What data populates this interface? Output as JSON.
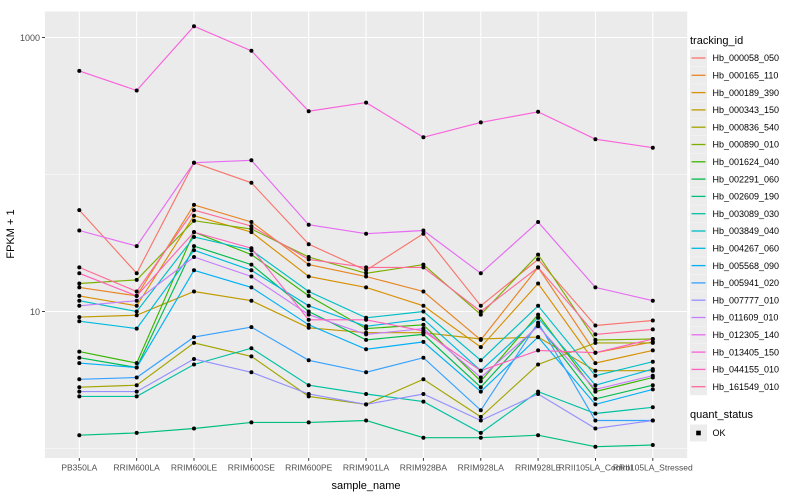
{
  "chart_data": {
    "type": "line",
    "title": "",
    "xlabel": "sample_name",
    "ylabel": "FPKM + 1",
    "y_scale": "log10",
    "ylim": [
      0.85,
      1550
    ],
    "grid": true,
    "legend_position": "right",
    "panel_background": "#EBEBEB",
    "gridline_color": "#FFFFFF",
    "point_color": "#000000",
    "y_ticks": [
      {
        "label": "1000",
        "value": 1000
      },
      {
        "label": "10",
        "value": 10
      }
    ],
    "y_minor_gridlines": [
      100,
      1
    ],
    "categories": [
      "PB350LA",
      "RRIM600LA",
      "RRIM600LE",
      "RRIM600SE",
      "RRIM600PE",
      "RRIM901LA",
      "RRIM928BA",
      "RRIM928LA",
      "RRIM928LE",
      "RRII105LA_Control",
      "RRII105LA_Stressed"
    ],
    "series": [
      {
        "name": "Hb_000058_050",
        "color": "#F8766D",
        "values": [
          55,
          19,
          122,
          87,
          31,
          20,
          37,
          11,
          24,
          7.9,
          8.6
        ]
      },
      {
        "name": "Hb_000165_110",
        "color": "#E88526",
        "values": [
          15,
          13,
          60,
          45,
          22,
          18,
          14,
          6.2,
          21,
          5,
          6
        ]
      },
      {
        "name": "Hb_000189_390",
        "color": "#D89000",
        "values": [
          13,
          11,
          50,
          38,
          18,
          15,
          11,
          5.5,
          16,
          4.2,
          5.2
        ]
      },
      {
        "name": "Hb_000343_150",
        "color": "#C09B00",
        "values": [
          9.1,
          9.4,
          14,
          12,
          7.6,
          7,
          7,
          6.3,
          6.5,
          3.7,
          3.7
        ]
      },
      {
        "name": "Hb_000836_540",
        "color": "#A3A500",
        "values": [
          2.8,
          2.9,
          5.9,
          4.7,
          2.4,
          2.1,
          3.2,
          1.7,
          4.1,
          5.9,
          5.9
        ]
      },
      {
        "name": "Hb_000890_010",
        "color": "#7CAE00",
        "values": [
          16,
          17,
          46,
          40,
          25,
          19,
          22,
          9.5,
          26,
          6.2,
          6.3
        ]
      },
      {
        "name": "Hb_001624_040",
        "color": "#39B600",
        "values": [
          5.1,
          4.2,
          38,
          26,
          13,
          7.5,
          8,
          3.1,
          9.5,
          2.6,
          3.3
        ]
      },
      {
        "name": "Hb_002291_060",
        "color": "#00BB4E",
        "values": [
          4.6,
          3.9,
          30,
          22,
          10,
          6.2,
          6.8,
          2.8,
          8,
          2.3,
          2.9
        ]
      },
      {
        "name": "Hb_002609_190",
        "color": "#00BF7D",
        "values": [
          1.25,
          1.3,
          1.4,
          1.55,
          1.55,
          1.6,
          1.2,
          1.2,
          1.25,
          1.03,
          1.06
        ]
      },
      {
        "name": "Hb_003089_030",
        "color": "#00C1A3",
        "values": [
          2.4,
          2.4,
          4.1,
          5.4,
          2.9,
          2.5,
          2.2,
          1.3,
          2.6,
          1.8,
          2
        ]
      },
      {
        "name": "Hb_003849_040",
        "color": "#00BFC4",
        "values": [
          12,
          10,
          35,
          28,
          14,
          9,
          10,
          4.4,
          11,
          3.4,
          4.3
        ]
      },
      {
        "name": "Hb_004267_060",
        "color": "#00BAE0",
        "values": [
          8.5,
          7.5,
          28,
          20,
          11,
          7.8,
          8.8,
          3.7,
          9,
          2.9,
          3.8
        ]
      },
      {
        "name": "Hb_005568_090",
        "color": "#00B0F6",
        "values": [
          4.2,
          3.9,
          20,
          15,
          8,
          5.3,
          6,
          2.6,
          6.5,
          2.1,
          2.7
        ]
      },
      {
        "name": "Hb_005941_020",
        "color": "#35A2FF",
        "values": [
          3.2,
          3.3,
          6.5,
          7.7,
          4.4,
          3.6,
          4.6,
          1.9,
          8.3,
          1.6,
          1.6
        ]
      },
      {
        "name": "Hb_007777_010",
        "color": "#9590FF",
        "values": [
          2.6,
          2.6,
          4.5,
          3.6,
          2.5,
          2.1,
          2.5,
          1.6,
          2.5,
          1.4,
          1.6
        ]
      },
      {
        "name": "Hb_011609_010",
        "color": "#C77CFF",
        "values": [
          11,
          12,
          25,
          18,
          9.5,
          6.8,
          7.5,
          3.3,
          7.8,
          2.7,
          3.4
        ]
      },
      {
        "name": "Hb_012305_140",
        "color": "#E76BF3",
        "values": [
          39,
          30,
          122,
          127,
          43,
          37,
          39,
          19,
          45,
          15,
          12
        ]
      },
      {
        "name": "Hb_013405_150",
        "color": "#FA62DB",
        "values": [
          570,
          410,
          1210,
          800,
          290,
          335,
          187,
          240,
          287,
          181,
          157
        ]
      },
      {
        "name": "Hb_044155_010",
        "color": "#FF62BC",
        "values": [
          19,
          13,
          38,
          29,
          8.7,
          8.7,
          7.2,
          3.7,
          5.2,
          5,
          6.3
        ]
      },
      {
        "name": "Hb_161549_010",
        "color": "#FF6A98",
        "values": [
          21,
          14,
          55,
          42,
          24,
          21,
          21,
          10,
          21,
          6.8,
          7.4
        ]
      }
    ],
    "legend": {
      "title": "tracking_id",
      "quant_title": "quant_status",
      "quant_items": [
        {
          "label": "OK",
          "marker": "black-square"
        }
      ]
    }
  }
}
